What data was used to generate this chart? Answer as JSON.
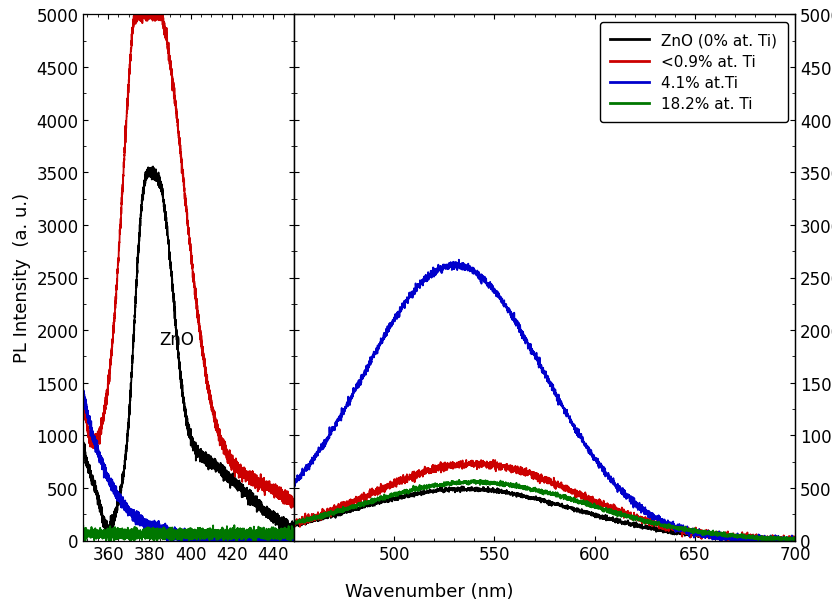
{
  "xlabel": "Wavenumber (nm)",
  "ylabel": "PL Intensity  (a. u.)",
  "ylim": [
    0,
    5000
  ],
  "yticks": [
    0,
    500,
    1000,
    1500,
    2000,
    2500,
    3000,
    3500,
    4000,
    4500,
    5000
  ],
  "left_xlim": [
    348,
    450
  ],
  "right_xlim": [
    450,
    700
  ],
  "left_xticks": [
    360,
    380,
    400,
    420,
    440
  ],
  "right_xticks": [
    500,
    550,
    600,
    650,
    700
  ],
  "colors": {
    "ZnO": "#000000",
    "low_Ti": "#cc0000",
    "mid_Ti": "#0000cc",
    "high_Ti": "#007700"
  },
  "legend_labels": [
    "ZnO (0% at. Ti)",
    "<0.9% at. Ti",
    "4.1% at.Ti",
    "18.2% at. Ti"
  ],
  "annotation": "ZnO",
  "background_color": "#ffffff",
  "linewidth": 1.3,
  "noise_seed": 12345
}
